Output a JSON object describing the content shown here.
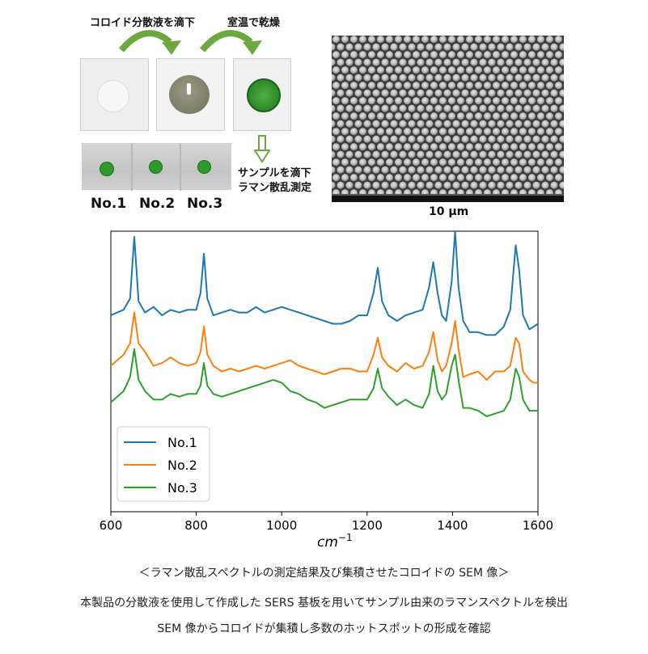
{
  "procedure": {
    "step1": "コロイド分散液を滴下",
    "step2": "室温で乾燥",
    "step3_line1": "サンプルを滴下",
    "step3_line2": "ラマン散乱測定",
    "samples": [
      "No.1",
      "No.2",
      "No.3"
    ]
  },
  "sem": {
    "scale_label": "10 μm"
  },
  "chart_data": {
    "type": "line",
    "xlabel": "cm",
    "xlabel_sup": "−1",
    "xlim": [
      600,
      1600
    ],
    "x_ticks": [
      "600",
      "800",
      "1000",
      "1200",
      "1400",
      "1600"
    ],
    "legend_position": "lower-left",
    "grid": false,
    "series": [
      {
        "name": "No.1",
        "color": "#1f77b4",
        "points": [
          [
            600,
            0.7
          ],
          [
            615,
            0.71
          ],
          [
            630,
            0.72
          ],
          [
            645,
            0.76
          ],
          [
            655,
            0.98
          ],
          [
            665,
            0.75
          ],
          [
            680,
            0.71
          ],
          [
            700,
            0.73
          ],
          [
            720,
            0.7
          ],
          [
            740,
            0.72
          ],
          [
            760,
            0.71
          ],
          [
            780,
            0.72
          ],
          [
            800,
            0.72
          ],
          [
            810,
            0.78
          ],
          [
            818,
            0.92
          ],
          [
            826,
            0.76
          ],
          [
            840,
            0.7
          ],
          [
            860,
            0.71
          ],
          [
            880,
            0.72
          ],
          [
            900,
            0.71
          ],
          [
            920,
            0.71
          ],
          [
            940,
            0.73
          ],
          [
            960,
            0.71
          ],
          [
            980,
            0.72
          ],
          [
            1000,
            0.73
          ],
          [
            1020,
            0.72
          ],
          [
            1040,
            0.71
          ],
          [
            1060,
            0.7
          ],
          [
            1080,
            0.69
          ],
          [
            1100,
            0.68
          ],
          [
            1120,
            0.67
          ],
          [
            1140,
            0.67
          ],
          [
            1160,
            0.68
          ],
          [
            1180,
            0.7
          ],
          [
            1200,
            0.7
          ],
          [
            1215,
            0.78
          ],
          [
            1225,
            0.87
          ],
          [
            1235,
            0.75
          ],
          [
            1250,
            0.7
          ],
          [
            1270,
            0.68
          ],
          [
            1290,
            0.7
          ],
          [
            1310,
            0.71
          ],
          [
            1330,
            0.72
          ],
          [
            1345,
            0.8
          ],
          [
            1355,
            0.89
          ],
          [
            1365,
            0.78
          ],
          [
            1375,
            0.7
          ],
          [
            1385,
            0.68
          ],
          [
            1398,
            0.82
          ],
          [
            1406,
            1.0
          ],
          [
            1414,
            0.8
          ],
          [
            1425,
            0.68
          ],
          [
            1440,
            0.64
          ],
          [
            1460,
            0.64
          ],
          [
            1480,
            0.63
          ],
          [
            1500,
            0.63
          ],
          [
            1520,
            0.66
          ],
          [
            1535,
            0.72
          ],
          [
            1548,
            0.95
          ],
          [
            1556,
            0.86
          ],
          [
            1565,
            0.7
          ],
          [
            1580,
            0.65
          ],
          [
            1590,
            0.66
          ],
          [
            1600,
            0.67
          ]
        ]
      },
      {
        "name": "No.2",
        "color": "#ff7f0e",
        "points": [
          [
            600,
            0.52
          ],
          [
            615,
            0.54
          ],
          [
            630,
            0.56
          ],
          [
            645,
            0.6
          ],
          [
            655,
            0.71
          ],
          [
            665,
            0.6
          ],
          [
            680,
            0.57
          ],
          [
            700,
            0.52
          ],
          [
            720,
            0.53
          ],
          [
            740,
            0.55
          ],
          [
            760,
            0.53
          ],
          [
            780,
            0.52
          ],
          [
            800,
            0.53
          ],
          [
            810,
            0.57
          ],
          [
            818,
            0.66
          ],
          [
            826,
            0.56
          ],
          [
            840,
            0.52
          ],
          [
            860,
            0.5
          ],
          [
            880,
            0.51
          ],
          [
            900,
            0.5
          ],
          [
            920,
            0.51
          ],
          [
            940,
            0.52
          ],
          [
            960,
            0.51
          ],
          [
            980,
            0.52
          ],
          [
            1000,
            0.53
          ],
          [
            1020,
            0.54
          ],
          [
            1040,
            0.52
          ],
          [
            1060,
            0.51
          ],
          [
            1080,
            0.5
          ],
          [
            1100,
            0.49
          ],
          [
            1120,
            0.5
          ],
          [
            1140,
            0.51
          ],
          [
            1160,
            0.51
          ],
          [
            1180,
            0.5
          ],
          [
            1200,
            0.5
          ],
          [
            1215,
            0.56
          ],
          [
            1225,
            0.62
          ],
          [
            1235,
            0.55
          ],
          [
            1250,
            0.52
          ],
          [
            1270,
            0.5
          ],
          [
            1290,
            0.53
          ],
          [
            1310,
            0.51
          ],
          [
            1330,
            0.52
          ],
          [
            1345,
            0.57
          ],
          [
            1355,
            0.64
          ],
          [
            1365,
            0.54
          ],
          [
            1375,
            0.5
          ],
          [
            1385,
            0.52
          ],
          [
            1398,
            0.6
          ],
          [
            1406,
            0.68
          ],
          [
            1414,
            0.58
          ],
          [
            1425,
            0.48
          ],
          [
            1440,
            0.49
          ],
          [
            1460,
            0.5
          ],
          [
            1480,
            0.47
          ],
          [
            1500,
            0.5
          ],
          [
            1520,
            0.5
          ],
          [
            1535,
            0.52
          ],
          [
            1548,
            0.62
          ],
          [
            1556,
            0.6
          ],
          [
            1565,
            0.5
          ],
          [
            1580,
            0.47
          ],
          [
            1590,
            0.46
          ],
          [
            1600,
            0.46
          ]
        ]
      },
      {
        "name": "No.3",
        "color": "#2ca02c",
        "points": [
          [
            600,
            0.39
          ],
          [
            615,
            0.41
          ],
          [
            630,
            0.43
          ],
          [
            645,
            0.48
          ],
          [
            655,
            0.58
          ],
          [
            665,
            0.47
          ],
          [
            680,
            0.43
          ],
          [
            700,
            0.4
          ],
          [
            720,
            0.4
          ],
          [
            740,
            0.42
          ],
          [
            760,
            0.41
          ],
          [
            780,
            0.42
          ],
          [
            800,
            0.42
          ],
          [
            810,
            0.45
          ],
          [
            818,
            0.53
          ],
          [
            826,
            0.45
          ],
          [
            840,
            0.42
          ],
          [
            860,
            0.41
          ],
          [
            880,
            0.42
          ],
          [
            900,
            0.43
          ],
          [
            920,
            0.44
          ],
          [
            940,
            0.45
          ],
          [
            960,
            0.46
          ],
          [
            980,
            0.47
          ],
          [
            1000,
            0.46
          ],
          [
            1020,
            0.43
          ],
          [
            1040,
            0.42
          ],
          [
            1060,
            0.4
          ],
          [
            1080,
            0.39
          ],
          [
            1100,
            0.37
          ],
          [
            1120,
            0.38
          ],
          [
            1140,
            0.39
          ],
          [
            1160,
            0.4
          ],
          [
            1180,
            0.4
          ],
          [
            1200,
            0.4
          ],
          [
            1215,
            0.44
          ],
          [
            1225,
            0.51
          ],
          [
            1235,
            0.44
          ],
          [
            1250,
            0.41
          ],
          [
            1270,
            0.38
          ],
          [
            1290,
            0.4
          ],
          [
            1310,
            0.38
          ],
          [
            1330,
            0.37
          ],
          [
            1345,
            0.42
          ],
          [
            1355,
            0.52
          ],
          [
            1365,
            0.43
          ],
          [
            1375,
            0.4
          ],
          [
            1385,
            0.42
          ],
          [
            1398,
            0.52
          ],
          [
            1406,
            0.56
          ],
          [
            1414,
            0.47
          ],
          [
            1425,
            0.37
          ],
          [
            1440,
            0.37
          ],
          [
            1460,
            0.36
          ],
          [
            1480,
            0.34
          ],
          [
            1500,
            0.35
          ],
          [
            1520,
            0.36
          ],
          [
            1535,
            0.4
          ],
          [
            1548,
            0.51
          ],
          [
            1556,
            0.48
          ],
          [
            1565,
            0.4
          ],
          [
            1580,
            0.36
          ],
          [
            1590,
            0.36
          ],
          [
            1600,
            0.36
          ]
        ]
      }
    ]
  },
  "captions": {
    "line1": "＜ラマン散乱スペクトルの測定結果及び集積させたコロイドの SEM 像＞",
    "line2": "本製品の分散液を使用して作成した SERS 基板を用いてサンプル由来のラマンスペクトルを検出",
    "line3": "SEM 像からコロイドが集積し多数のホットスポットの形成を確認"
  }
}
